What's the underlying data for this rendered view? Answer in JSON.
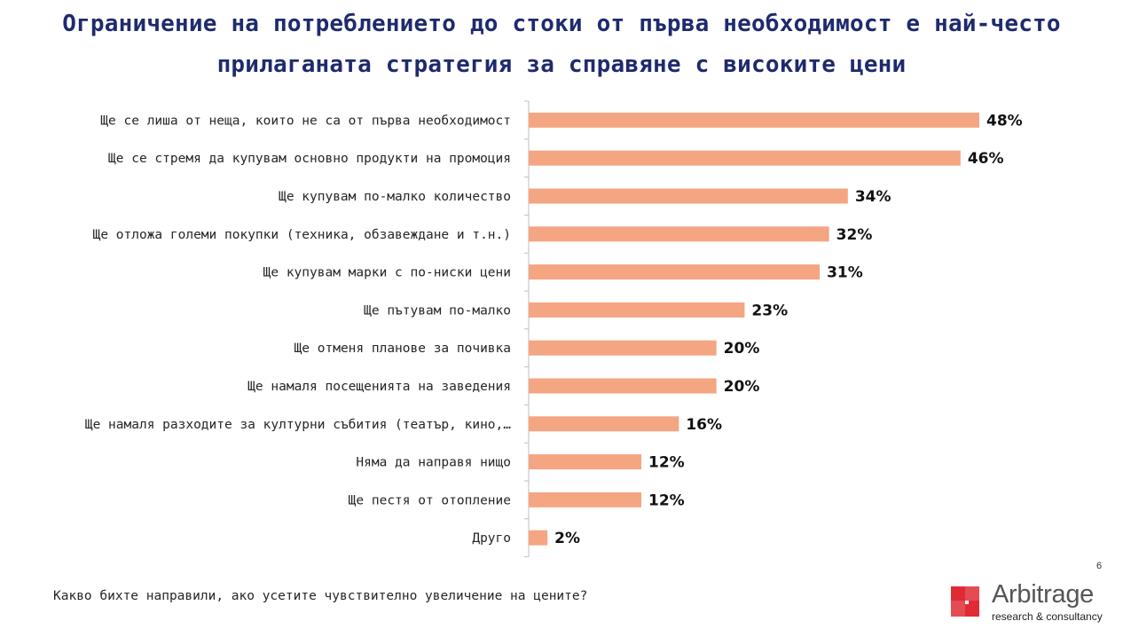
{
  "title_line1": "Ограничение на потреблението до стоки от първа необходимост е най-често",
  "title_line2": "прилаганата стратегия за справяне с високите цени",
  "question": "Какво бихте направили, ако усетите чувствително увеличение на цените?",
  "page_number": "6",
  "logo": {
    "name": "Arbitrage",
    "tagline": "research & consultancy"
  },
  "colors": {
    "bar": "#f4a582",
    "title": "#1f2a6e",
    "logo_red": "#e02b35"
  },
  "chart_data": {
    "type": "bar",
    "orientation": "horizontal",
    "categories": [
      "Ще се лиша от неща, които не са от първа необходимост",
      "Ще се стремя да купувам основно продукти на промоция",
      "Ще купувам по-малко количество",
      "Ще отложа големи покупки (техника, обзавеждане и т.н.)",
      "Ще купувам марки с по-ниски цени",
      "Ще пътувам по-малко",
      "Ще отменя планове за почивка",
      "Ще намаля посещенията на заведения",
      "Ще намаля разходите за културни събития (театър, кино,…",
      "Няма да направя нищо",
      "Ще пестя от отопление",
      "Друго"
    ],
    "values": [
      48,
      46,
      34,
      32,
      31,
      23,
      20,
      20,
      16,
      12,
      12,
      2
    ],
    "value_labels": [
      "48%",
      "46%",
      "34%",
      "32%",
      "31%",
      "23%",
      "20%",
      "20%",
      "16%",
      "12%",
      "12%",
      "2%"
    ],
    "xlim": [
      0,
      50
    ],
    "grid": false,
    "legend": "none"
  }
}
